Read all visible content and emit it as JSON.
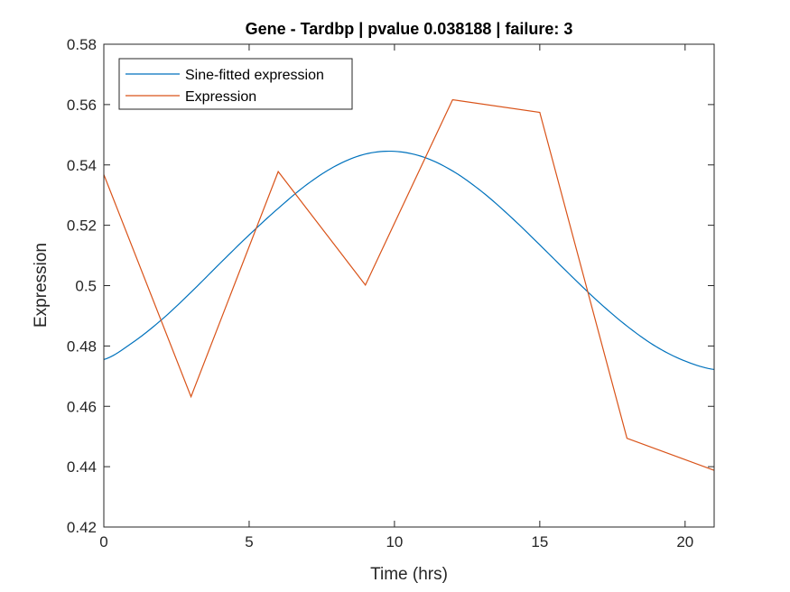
{
  "chart_data": {
    "type": "line",
    "title": "Gene - Tardbp | pvalue 0.038188 | failure: 3",
    "xlabel": "Time (hrs)",
    "ylabel": "Expression",
    "xlim": [
      0,
      21
    ],
    "ylim": [
      0.42,
      0.58
    ],
    "xticks": [
      0,
      5,
      10,
      15,
      20
    ],
    "yticks": [
      0.42,
      0.44,
      0.46,
      0.48,
      0.5,
      0.52,
      0.54,
      0.56,
      0.58
    ],
    "ytick_labels": [
      "0.42",
      "0.44",
      "0.46",
      "0.48",
      "0.5",
      "0.52",
      "0.54",
      "0.56",
      "0.58"
    ],
    "xtick_labels": [
      "0",
      "5",
      "10",
      "15",
      "20"
    ],
    "grid": false,
    "legend_position": "top-left",
    "series": [
      {
        "name": "Sine-fitted expression",
        "color": "#0072BD",
        "kind": "sine",
        "x": [
          0,
          1,
          2,
          3,
          4,
          5,
          6,
          7,
          8,
          9,
          10,
          11,
          12,
          13,
          14,
          15,
          16,
          17,
          18,
          19,
          20,
          21
        ],
        "values": [
          0.4755,
          0.4812,
          0.4888,
          0.4978,
          0.5074,
          0.5168,
          0.5256,
          0.5336,
          0.5398,
          0.5436,
          0.5445,
          0.5426,
          0.538,
          0.5312,
          0.5228,
          0.5135,
          0.504,
          0.4948,
          0.4866,
          0.4798,
          0.475,
          0.4722
        ]
      },
      {
        "name": "Expression",
        "color": "#D95319",
        "kind": "line",
        "x": [
          0,
          3,
          6,
          9,
          12,
          15,
          18,
          21
        ],
        "values": [
          0.5368,
          0.4632,
          0.5378,
          0.5002,
          0.5616,
          0.5574,
          0.4494,
          0.4388
        ]
      }
    ]
  }
}
